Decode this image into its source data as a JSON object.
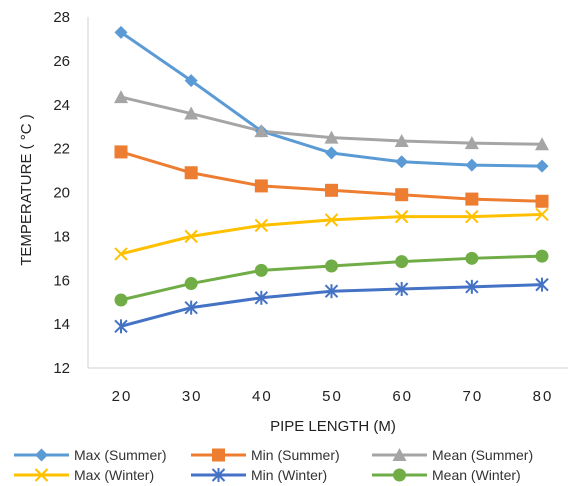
{
  "chart_data": {
    "type": "line",
    "xlabel": "PIPE LENGTH (M)",
    "ylabel": "TEMPERATURE ( °C )",
    "x": [
      20,
      30,
      40,
      50,
      60,
      70,
      80
    ],
    "ylim": [
      12,
      28
    ],
    "yticks": [
      12,
      14,
      16,
      18,
      20,
      22,
      24,
      26,
      28
    ],
    "grid": false,
    "legend_position": "bottom",
    "series": [
      {
        "name": "Max (Summer)",
        "color": "#5b9bd5",
        "marker": "diamond",
        "values": [
          27.3,
          25.1,
          22.8,
          21.8,
          21.4,
          21.25,
          21.2
        ]
      },
      {
        "name": "Min (Summer)",
        "color": "#ed7d31",
        "marker": "square",
        "values": [
          21.85,
          20.9,
          20.3,
          20.1,
          19.9,
          19.7,
          19.6
        ]
      },
      {
        "name": "Mean (Summer)",
        "color": "#a5a5a5",
        "marker": "triangle",
        "values": [
          24.35,
          23.6,
          22.8,
          22.5,
          22.35,
          22.25,
          22.2
        ]
      },
      {
        "name": "Max (Winter)",
        "color": "#ffc000",
        "marker": "x",
        "values": [
          17.2,
          18.0,
          18.5,
          18.75,
          18.9,
          18.9,
          19.0
        ]
      },
      {
        "name": "Min (Winter)",
        "color": "#4472c4",
        "marker": "star",
        "values": [
          13.9,
          14.75,
          15.2,
          15.5,
          15.6,
          15.7,
          15.8
        ]
      },
      {
        "name": "Mean (Winter)",
        "color": "#70ad47",
        "marker": "circle",
        "values": [
          15.1,
          15.85,
          16.45,
          16.65,
          16.85,
          17.0,
          17.1
        ]
      }
    ]
  }
}
